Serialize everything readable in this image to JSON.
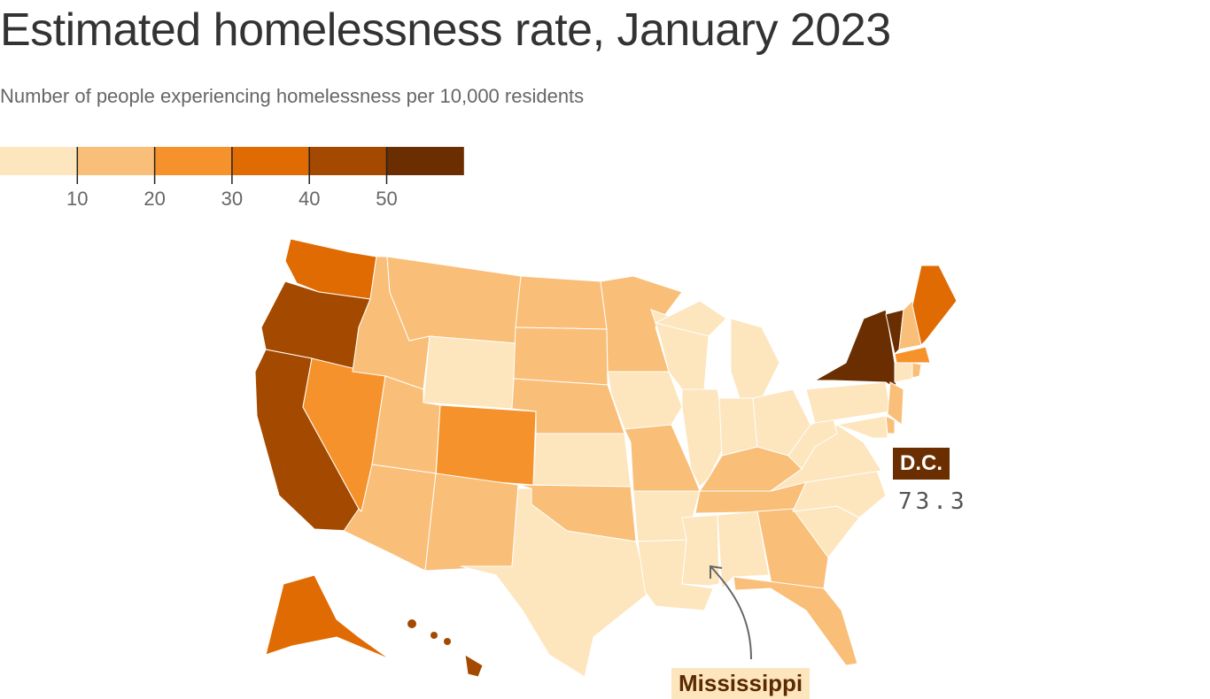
{
  "chart_data": {
    "type": "choropleth",
    "title": "Estimated homelessness rate, January 2023",
    "subtitle": "Number of people experiencing homelessness per 10,000 residents",
    "legend": {
      "ticks": [
        "10",
        "20",
        "30",
        "40",
        "50"
      ],
      "colors": [
        "#fde5bd",
        "#f9be77",
        "#f6922c",
        "#e06b02",
        "#a44a00",
        "#6a2e00"
      ],
      "placement": "top-left"
    },
    "state_buckets": {
      "WA": 3,
      "OR": 4,
      "CA": 4,
      "NV": 2,
      "ID": 1,
      "MT": 1,
      "WY": 0,
      "UT": 1,
      "AZ": 1,
      "NM": 1,
      "CO": 2,
      "ND": 1,
      "SD": 1,
      "NE": 1,
      "KS": 0,
      "OK": 1,
      "TX": 0,
      "MN": 1,
      "IA": 0,
      "MO": 1,
      "AR": 0,
      "LA": 0,
      "WI": 0,
      "IL": 0,
      "MI": 0,
      "MIU": 0,
      "IN": 0,
      "OH": 0,
      "KY": 1,
      "TN": 1,
      "MS": 0,
      "AL": 0,
      "GA": 1,
      "FL": 1,
      "SC": 0,
      "NC": 0,
      "VA": 0,
      "WV": 0,
      "PA": 0,
      "NY": 5,
      "VT": 5,
      "NH": 1,
      "ME": 3,
      "MA": 2,
      "CT": 0,
      "RI": 1,
      "NJ": 1,
      "DE": 1,
      "MD": 0,
      "AK": 3,
      "HI": 4
    },
    "annotations": [
      {
        "label": "D.C.",
        "value": "73.3"
      },
      {
        "label": "Mississippi"
      }
    ]
  }
}
